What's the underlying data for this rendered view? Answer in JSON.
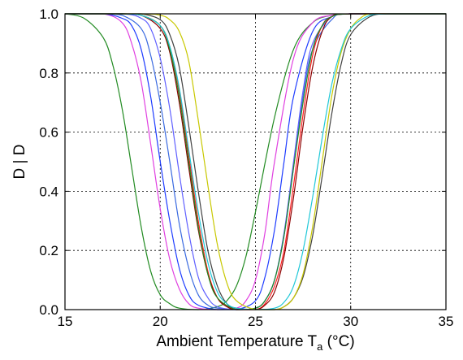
{
  "chart_data": {
    "type": "line",
    "title": "",
    "xlabel": "Ambient Temperature T",
    "xlabel_subscript": "a",
    "xlabel_unit": " (°C)",
    "ylabel": "D | D",
    "xlim": [
      15,
      35
    ],
    "ylim": [
      0,
      1
    ],
    "x_ticks": [
      15,
      20,
      25,
      30,
      35
    ],
    "y_ticks": [
      0.0,
      0.2,
      0.4,
      0.6,
      0.8,
      1.0
    ],
    "x_tick_labels": [
      "15",
      "20",
      "25",
      "30",
      "35"
    ],
    "y_tick_labels": [
      "0.0",
      "0.2",
      "0.4",
      "0.6",
      "0.8",
      "1.0"
    ],
    "grid": true,
    "legend": "none",
    "series": [
      {
        "color": "#228B22",
        "x": [
          15,
          16,
          17,
          17.5,
          18,
          18.5,
          19,
          19.5,
          20,
          20.5,
          21,
          22,
          23,
          23.5,
          24,
          24.5,
          25,
          26,
          27,
          28,
          29,
          30,
          31,
          32,
          35
        ],
        "y": [
          1.0,
          0.985,
          0.92,
          0.83,
          0.68,
          0.48,
          0.28,
          0.13,
          0.05,
          0.02,
          0.005,
          0.0,
          0.01,
          0.03,
          0.08,
          0.18,
          0.33,
          0.65,
          0.88,
          0.97,
          0.995,
          1.0,
          1.0,
          1.0,
          1.0
        ]
      },
      {
        "color": "#E040E0",
        "x": [
          15,
          17,
          18,
          18.5,
          19,
          19.5,
          20,
          20.5,
          21,
          21.5,
          22,
          23,
          24,
          24.5,
          25,
          25.5,
          26,
          27,
          28,
          29,
          30,
          35
        ],
        "y": [
          1.0,
          1.0,
          0.97,
          0.9,
          0.77,
          0.56,
          0.34,
          0.17,
          0.07,
          0.02,
          0.005,
          0.0,
          0.005,
          0.03,
          0.1,
          0.26,
          0.5,
          0.85,
          0.97,
          0.995,
          1.0,
          1.0
        ]
      },
      {
        "color": "#1E3CFF",
        "x": [
          15,
          17,
          18,
          18.5,
          19,
          19.5,
          20,
          20.5,
          21,
          21.5,
          22,
          23,
          24,
          25,
          25.5,
          26,
          26.5,
          27,
          28,
          29,
          30,
          35
        ],
        "y": [
          1.0,
          1.0,
          0.985,
          0.96,
          0.88,
          0.72,
          0.5,
          0.3,
          0.14,
          0.05,
          0.015,
          0.0,
          0.0,
          0.03,
          0.11,
          0.27,
          0.5,
          0.72,
          0.94,
          0.99,
          1.0,
          1.0
        ]
      },
      {
        "color": "#3A6AE0",
        "x": [
          15,
          17,
          18,
          19,
          19.5,
          20,
          20.5,
          21,
          21.5,
          22,
          22.5,
          23,
          24,
          25,
          25.5,
          26,
          26.5,
          27,
          27.5,
          28,
          29,
          30,
          35
        ],
        "y": [
          1.0,
          1.0,
          0.995,
          0.95,
          0.86,
          0.7,
          0.5,
          0.29,
          0.14,
          0.05,
          0.015,
          0.005,
          0.0,
          0.005,
          0.03,
          0.1,
          0.25,
          0.48,
          0.72,
          0.88,
          0.98,
          1.0,
          1.0
        ]
      },
      {
        "color": "#6060FF",
        "x": [
          15,
          18,
          19,
          19.5,
          20,
          20.5,
          21,
          21.5,
          22,
          22.5,
          23,
          24,
          25,
          25.5,
          26,
          26.5,
          27,
          27.5,
          28,
          29,
          30,
          35
        ],
        "y": [
          1.0,
          1.0,
          0.985,
          0.95,
          0.85,
          0.68,
          0.46,
          0.26,
          0.11,
          0.04,
          0.01,
          0.0,
          0.005,
          0.03,
          0.1,
          0.26,
          0.5,
          0.74,
          0.9,
          0.99,
          1.0,
          1.0
        ]
      },
      {
        "color": "#FF1E1E",
        "x": [
          15,
          18,
          19,
          20,
          20.5,
          21,
          21.5,
          22,
          22.5,
          23,
          23.5,
          24,
          25,
          25.5,
          26,
          26.5,
          27,
          27.5,
          28,
          28.5,
          29,
          30,
          35
        ],
        "y": [
          1.0,
          1.0,
          0.995,
          0.96,
          0.89,
          0.74,
          0.52,
          0.3,
          0.13,
          0.04,
          0.01,
          0.0,
          0.0,
          0.02,
          0.08,
          0.2,
          0.42,
          0.66,
          0.86,
          0.96,
          0.99,
          1.0,
          1.0
        ]
      },
      {
        "color": "#8B0000",
        "x": [
          15,
          18,
          19,
          20,
          20.5,
          21,
          21.5,
          22,
          22.5,
          23,
          23.5,
          24,
          25,
          25.5,
          26,
          26.5,
          27,
          27.5,
          28,
          28.5,
          29,
          30,
          35
        ],
        "y": [
          1.0,
          1.0,
          0.995,
          0.95,
          0.87,
          0.7,
          0.48,
          0.27,
          0.12,
          0.04,
          0.01,
          0.0,
          0.0,
          0.015,
          0.06,
          0.18,
          0.38,
          0.62,
          0.82,
          0.94,
          0.99,
          1.0,
          1.0
        ]
      },
      {
        "color": "#228B22",
        "x": [
          15,
          18,
          19,
          20,
          20.5,
          21,
          21.5,
          22,
          22.5,
          23,
          24,
          25,
          25.5,
          26,
          26.5,
          27,
          27.5,
          28,
          28.5,
          29,
          30,
          35
        ],
        "y": [
          1.0,
          1.0,
          0.995,
          0.96,
          0.88,
          0.72,
          0.5,
          0.28,
          0.12,
          0.04,
          0.0,
          0.005,
          0.03,
          0.1,
          0.25,
          0.48,
          0.7,
          0.88,
          0.96,
          0.99,
          1.0,
          1.0
        ]
      },
      {
        "color": "#404040",
        "x": [
          15,
          18,
          19,
          20,
          20.5,
          21,
          21.5,
          22,
          22.5,
          23,
          23.5,
          24,
          25,
          26,
          26.5,
          27,
          27.5,
          28,
          28.5,
          29,
          29.5,
          30,
          31,
          32,
          35
        ],
        "y": [
          1.0,
          1.0,
          1.0,
          0.98,
          0.93,
          0.82,
          0.62,
          0.4,
          0.2,
          0.08,
          0.02,
          0.005,
          0.0,
          0.0,
          0.01,
          0.04,
          0.11,
          0.25,
          0.45,
          0.66,
          0.83,
          0.93,
          0.99,
          1.0,
          1.0
        ]
      },
      {
        "color": "#C8C800",
        "x": [
          15,
          19,
          20,
          20.5,
          21,
          21.5,
          22,
          22.5,
          23,
          23.5,
          24,
          25,
          26,
          26.5,
          27,
          27.5,
          28,
          28.5,
          29,
          29.5,
          30,
          30.5,
          31,
          32,
          35
        ],
        "y": [
          1.0,
          1.0,
          0.995,
          0.98,
          0.94,
          0.84,
          0.64,
          0.42,
          0.22,
          0.09,
          0.03,
          0.0,
          0.0,
          0.01,
          0.04,
          0.12,
          0.28,
          0.5,
          0.72,
          0.87,
          0.95,
          0.985,
          1.0,
          1.0,
          1.0
        ]
      },
      {
        "color": "#20C8D8",
        "x": [
          15,
          18,
          19,
          20,
          20.5,
          21,
          21.5,
          22,
          22.5,
          23,
          23.5,
          24,
          25,
          26,
          26.5,
          27,
          27.5,
          28,
          28.5,
          29,
          29.5,
          30,
          31,
          32,
          35
        ],
        "y": [
          1.0,
          1.0,
          0.995,
          0.96,
          0.89,
          0.75,
          0.54,
          0.33,
          0.16,
          0.06,
          0.02,
          0.005,
          0.0,
          0.005,
          0.025,
          0.08,
          0.2,
          0.38,
          0.58,
          0.76,
          0.88,
          0.95,
          0.995,
          1.0,
          1.0
        ]
      }
    ]
  }
}
